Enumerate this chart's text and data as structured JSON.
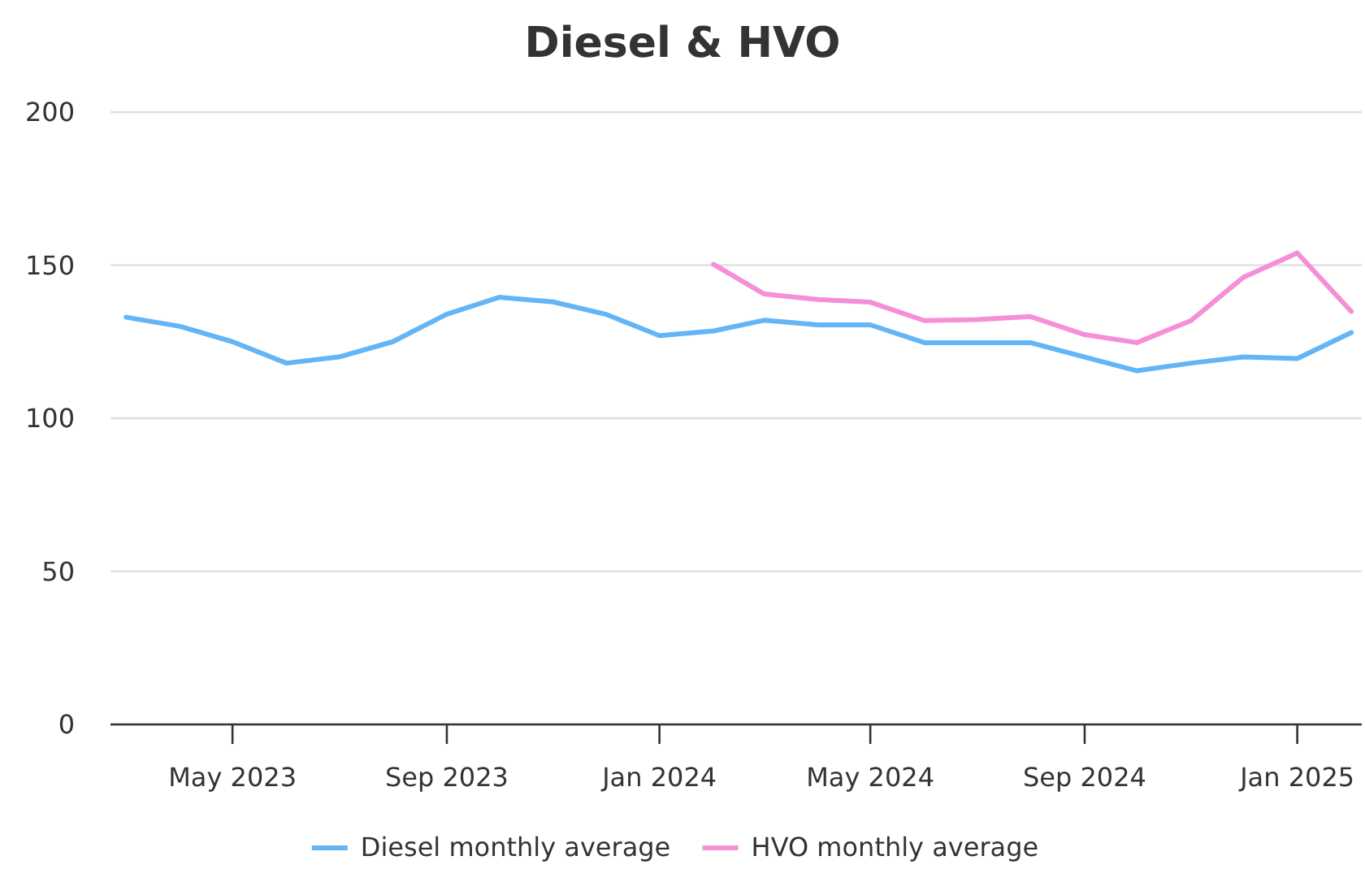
{
  "chart_data": {
    "type": "line",
    "title": "Diesel & HVO",
    "x": [
      "2023-03",
      "2023-04",
      "2023-05",
      "2023-06",
      "2023-07",
      "2023-08",
      "2023-09",
      "2023-10",
      "2023-11",
      "2023-12",
      "2024-01",
      "2024-02",
      "2024-03",
      "2024-04",
      "2024-05",
      "2024-06",
      "2024-07",
      "2024-08",
      "2024-09",
      "2024-10",
      "2024-11",
      "2024-12",
      "2025-01",
      "2025-02"
    ],
    "series": [
      {
        "name": "Diesel monthly average",
        "color": "#64b5f6",
        "values": [
          133,
          130,
          125,
          118,
          120,
          125,
          134,
          139.5,
          138,
          134,
          127,
          128.5,
          132,
          130.5,
          130.5,
          124.7,
          124.7,
          124.7,
          120,
          115.5,
          118,
          120,
          119.5,
          128
        ]
      },
      {
        "name": "HVO monthly average",
        "color": "#f48fd8",
        "x": [
          "2024-02",
          "2024-03",
          "2024-04",
          "2024-05",
          "2024-06",
          "2024-07",
          "2024-08",
          "2024-09",
          "2024-10",
          "2024-11",
          "2024-12",
          "2025-01",
          "2025-02"
        ],
        "values": [
          150.3,
          140.6,
          138.8,
          137.9,
          131.9,
          132.2,
          133.2,
          127.3,
          124.7,
          131.9,
          146,
          154,
          134.9
        ]
      }
    ],
    "xlim": [
      "2023-02-20",
      "2025-02-07"
    ],
    "xticks": [
      {
        "value": "2023-05",
        "label": "May 2023"
      },
      {
        "value": "2023-09",
        "label": "Sep 2023"
      },
      {
        "value": "2024-01",
        "label": "Jan 2024"
      },
      {
        "value": "2024-05",
        "label": "May 2024"
      },
      {
        "value": "2024-09",
        "label": "Sep 2024"
      },
      {
        "value": "2025-01",
        "label": "Jan 2025"
      }
    ],
    "ylim": [
      0,
      200
    ],
    "yticks": [
      0,
      50,
      100,
      150,
      200
    ],
    "grid": "y",
    "legend": "bottom",
    "marker": "none",
    "line_style": "solid"
  }
}
